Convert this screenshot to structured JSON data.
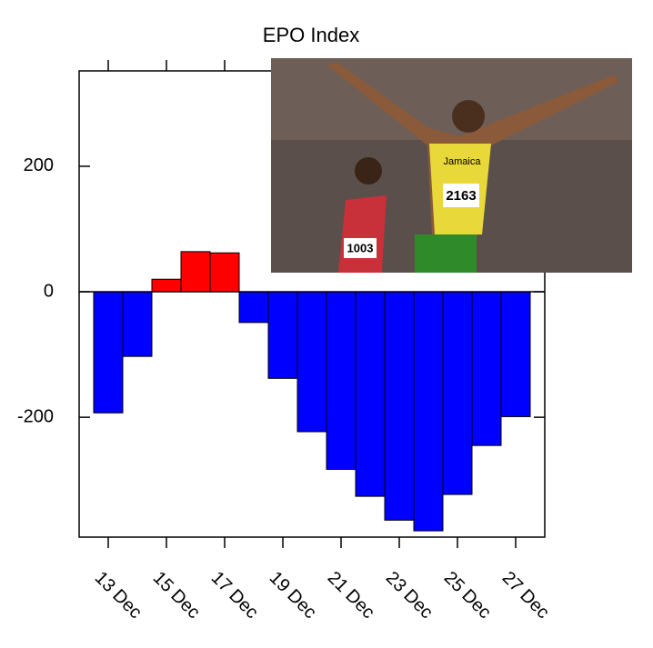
{
  "chart_data": {
    "type": "bar",
    "title": "EPO Index",
    "categories": [
      "13 Dec",
      null,
      "15 Dec",
      null,
      "17 Dec",
      null,
      "19 Dec",
      null,
      "21 Dec",
      null,
      "23 Dec",
      null,
      "25 Dec",
      null,
      "27 Dec"
    ],
    "values": [
      -193,
      -103,
      20,
      64,
      62,
      -49,
      -138,
      -223,
      -283,
      -326,
      -364,
      -381,
      -323,
      -245,
      -199
    ],
    "color_positive": "#ff0000",
    "color_negative": "#0000ff",
    "ylim": [
      -391,
      352
    ],
    "yticks": [
      -200,
      0,
      200
    ]
  },
  "photo": {
    "texts": [
      "Jamaica",
      "2163",
      "1003"
    ]
  }
}
